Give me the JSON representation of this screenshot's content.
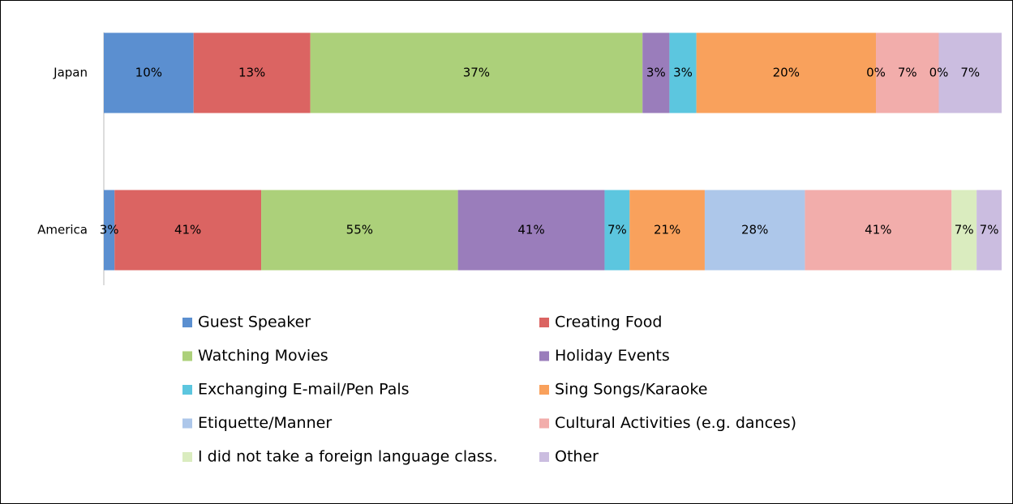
{
  "chart_data": {
    "type": "stacked_bar_100",
    "orientation": "horizontal",
    "categories": [
      "Japan",
      "America"
    ],
    "series": [
      {
        "name": "Guest Speaker",
        "color": "#5b8fd0",
        "values": [
          10,
          3
        ],
        "value_labels": [
          "10%",
          "3%"
        ]
      },
      {
        "name": "Creating Food",
        "color": "#db6462",
        "values": [
          13,
          41
        ],
        "value_labels": [
          "13%",
          "41%"
        ]
      },
      {
        "name": "Watching Movies",
        "color": "#acd07a",
        "values": [
          37,
          55
        ],
        "value_labels": [
          "37%",
          "55%"
        ]
      },
      {
        "name": "Holiday Events",
        "color": "#9a7dbb",
        "values": [
          3,
          41
        ],
        "value_labels": [
          "3%",
          "41%"
        ]
      },
      {
        "name": "Exchanging E-mail/Pen Pals",
        "color": "#5cc6df",
        "values": [
          3,
          7
        ],
        "value_labels": [
          "3%",
          "7%"
        ]
      },
      {
        "name": "Sing Songs/Karaoke",
        "color": "#f9a15c",
        "values": [
          20,
          21
        ],
        "value_labels": [
          "20%",
          "21%"
        ]
      },
      {
        "name": "Etiquette/Manner",
        "color": "#adc7ea",
        "values": [
          0,
          28
        ],
        "value_labels": [
          "0%",
          "28%"
        ]
      },
      {
        "name": "Cultural Activities (e.g. dances)",
        "color": "#f2adab",
        "values": [
          7,
          41
        ],
        "value_labels": [
          "7%",
          "41%"
        ]
      },
      {
        "name": "I did not take a foreign language class.",
        "color": "#daecbf",
        "values": [
          0,
          7
        ],
        "value_labels": [
          "0%",
          "7%"
        ]
      },
      {
        "name": "Other",
        "color": "#cbbde0",
        "values": [
          7,
          7
        ],
        "value_labels": [
          "7%",
          "7%"
        ]
      }
    ]
  }
}
